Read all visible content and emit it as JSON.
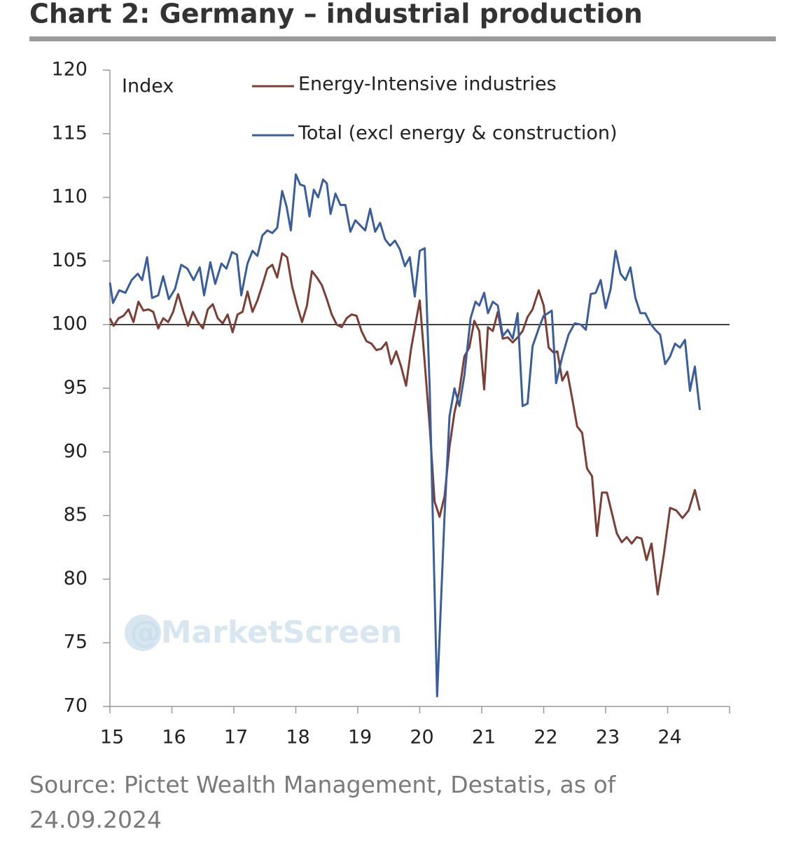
{
  "chart_data": {
    "type": "line",
    "title": "Chart 2: Germany – industrial production",
    "y_label": "Index",
    "source": "Source: Pictet Wealth Management, Destatis, as of 24.09.2024",
    "watermark": "@MarketScreen",
    "xlim": [
      15,
      25
    ],
    "xticks": [
      15,
      16,
      17,
      18,
      19,
      20,
      21,
      22,
      23,
      24
    ],
    "ylim": [
      70,
      120
    ],
    "yticks": [
      70,
      75,
      80,
      85,
      90,
      95,
      100,
      105,
      110,
      115,
      120
    ],
    "hline": 100,
    "series": [
      {
        "name": "Energy-Intensive industries",
        "color": "#7b3f35",
        "x": [
          15.0,
          15.06,
          15.14,
          15.22,
          15.3,
          15.38,
          15.46,
          15.54,
          15.62,
          15.7,
          15.78,
          15.86,
          15.94,
          16.02,
          16.1,
          16.18,
          16.26,
          16.34,
          16.42,
          16.5,
          16.58,
          16.66,
          16.74,
          16.82,
          16.9,
          16.98,
          17.06,
          17.14,
          17.22,
          17.3,
          17.38,
          17.46,
          17.54,
          17.62,
          17.7,
          17.78,
          17.86,
          17.94,
          18.02,
          18.1,
          18.18,
          18.26,
          18.34,
          18.42,
          18.5,
          18.58,
          18.66,
          18.74,
          18.82,
          18.9,
          18.98,
          19.06,
          19.14,
          19.22,
          19.3,
          19.38,
          19.46,
          19.54,
          19.62,
          19.7,
          19.78,
          19.86,
          19.94,
          20.0,
          20.08,
          20.16,
          20.24,
          20.32,
          20.4,
          20.48,
          20.56,
          20.64,
          20.72,
          20.8,
          20.88,
          20.96,
          21.04,
          21.1,
          21.18,
          21.26,
          21.34,
          21.42,
          21.5,
          21.58,
          21.66,
          21.74,
          21.82,
          21.92,
          22.0,
          22.08,
          22.16,
          22.22,
          22.3,
          22.38,
          22.46,
          22.54,
          22.62,
          22.7,
          22.78,
          22.86,
          22.94,
          23.02,
          23.1,
          23.18,
          23.26,
          23.34,
          23.42,
          23.5,
          23.58,
          23.66,
          23.74,
          23.84,
          23.94,
          24.04,
          24.14,
          24.24,
          24.34,
          24.44,
          24.52
        ],
        "values": [
          100.5,
          99.9,
          100.5,
          100.7,
          101.2,
          100.2,
          101.8,
          101.1,
          101.2,
          101.0,
          99.7,
          100.5,
          100.2,
          101.0,
          102.4,
          101.1,
          99.9,
          101.0,
          100.2,
          99.7,
          101.2,
          101.6,
          100.5,
          100.1,
          100.8,
          99.4,
          100.8,
          101.0,
          102.6,
          101.0,
          101.9,
          103.1,
          104.4,
          104.7,
          103.7,
          105.6,
          105.3,
          103.0,
          101.5,
          100.2,
          101.5,
          104.2,
          103.7,
          103.1,
          102.0,
          100.8,
          100.0,
          99.8,
          100.5,
          100.8,
          100.7,
          99.5,
          98.7,
          98.5,
          98.0,
          98.1,
          98.6,
          96.9,
          97.9,
          96.7,
          95.2,
          98.1,
          100.3,
          101.9,
          97.0,
          92.0,
          86.1,
          84.9,
          86.5,
          90.4,
          93.1,
          94.8,
          97.5,
          98.2,
          100.3,
          99.5,
          94.9,
          99.8,
          99.5,
          101.0,
          98.9,
          99.0,
          98.6,
          99.0,
          99.5,
          100.6,
          101.2,
          102.7,
          101.5,
          98.2,
          97.8,
          97.9,
          95.6,
          96.3,
          94.2,
          92.0,
          91.5,
          88.7,
          88.1,
          83.4,
          86.8,
          86.8,
          85.2,
          83.6,
          82.9,
          83.3,
          82.8,
          83.3,
          83.2,
          81.5,
          82.8,
          78.8,
          82.0,
          85.6,
          85.4,
          84.8,
          85.4,
          87.0,
          85.4
        ]
      },
      {
        "name": "Total (excl energy & construction)",
        "color": "#3a5d9c",
        "x": [
          15.0,
          15.05,
          15.15,
          15.25,
          15.35,
          15.45,
          15.52,
          15.6,
          15.68,
          15.78,
          15.86,
          15.95,
          16.05,
          16.15,
          16.25,
          16.35,
          16.45,
          16.52,
          16.62,
          16.7,
          16.8,
          16.88,
          16.97,
          17.05,
          17.12,
          17.22,
          17.3,
          17.38,
          17.46,
          17.54,
          17.62,
          17.7,
          17.78,
          17.85,
          17.92,
          18.0,
          18.07,
          18.14,
          18.22,
          18.29,
          18.36,
          18.44,
          18.5,
          18.56,
          18.64,
          18.72,
          18.8,
          18.88,
          18.96,
          19.04,
          19.12,
          19.2,
          19.28,
          19.36,
          19.44,
          19.52,
          19.6,
          19.68,
          19.76,
          19.84,
          19.92,
          20.0,
          20.08,
          20.16,
          20.28,
          20.4,
          20.48,
          20.56,
          20.64,
          20.72,
          20.82,
          20.9,
          20.96,
          21.04,
          21.1,
          21.18,
          21.26,
          21.34,
          21.42,
          21.5,
          21.58,
          21.66,
          21.74,
          21.82,
          21.92,
          22.0,
          22.07,
          22.13,
          22.2,
          22.3,
          22.4,
          22.5,
          22.6,
          22.68,
          22.76,
          22.84,
          22.92,
          23.0,
          23.08,
          23.16,
          23.24,
          23.32,
          23.4,
          23.48,
          23.56,
          23.64,
          23.72,
          23.8,
          23.88,
          23.96,
          24.04,
          24.12,
          24.2,
          24.28,
          24.36,
          24.44,
          24.52
        ],
        "values": [
          103.3,
          101.7,
          102.7,
          102.5,
          103.5,
          104.0,
          103.5,
          105.3,
          102.1,
          102.3,
          103.8,
          102.0,
          102.8,
          104.7,
          104.4,
          103.5,
          104.5,
          102.3,
          104.9,
          103.2,
          104.8,
          104.4,
          105.7,
          105.5,
          102.3,
          104.8,
          105.8,
          105.4,
          107.0,
          107.4,
          107.2,
          107.6,
          110.5,
          109.3,
          107.4,
          111.8,
          111.0,
          110.9,
          108.5,
          110.6,
          110.0,
          111.4,
          111.1,
          108.7,
          110.3,
          109.4,
          109.4,
          107.3,
          108.2,
          107.8,
          107.4,
          109.1,
          107.3,
          108.0,
          106.7,
          106.2,
          106.6,
          105.9,
          104.6,
          105.3,
          102.2,
          105.8,
          106.0,
          95.0,
          70.8,
          85.0,
          92.8,
          95.0,
          93.6,
          96.0,
          100.5,
          101.8,
          101.5,
          102.5,
          100.9,
          101.8,
          101.5,
          99.1,
          99.6,
          98.9,
          100.9,
          93.6,
          93.8,
          98.3,
          99.7,
          100.7,
          100.9,
          101.1,
          95.4,
          97.5,
          99.2,
          100.1,
          100.0,
          99.6,
          102.4,
          102.5,
          103.5,
          101.3,
          102.8,
          105.8,
          104.0,
          103.5,
          104.5,
          102.1,
          100.9,
          100.9,
          100.1,
          99.6,
          99.2,
          96.9,
          97.5,
          98.5,
          98.2,
          98.8,
          94.8,
          96.7,
          93.3
        ]
      }
    ]
  }
}
